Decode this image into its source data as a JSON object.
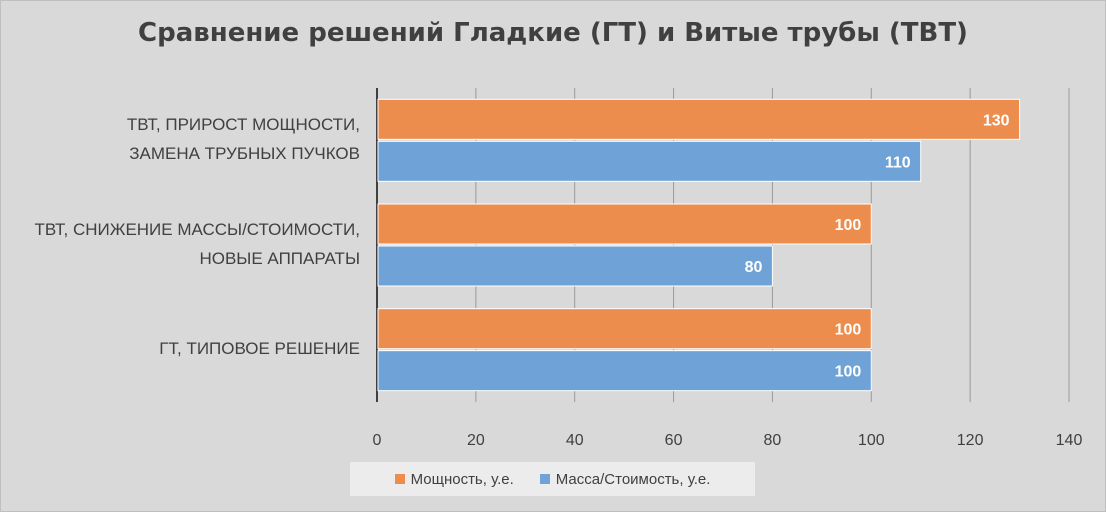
{
  "chart_data": {
    "type": "bar",
    "orientation": "horizontal",
    "title": "Сравнение решений Гладкие (ГТ) и Витые трубы (ТВТ)",
    "categories": [
      [
        "ТВТ, ПРИРОСТ МОЩНОСТИ,",
        "ЗАМЕНА ТРУБНЫХ ПУЧКОВ"
      ],
      [
        "ТВТ, СНИЖЕНИЕ МАССЫ/СТОИМОСТИ,",
        "НОВЫЕ АППАРАТЫ"
      ],
      [
        "ГТ, ТИПОВОЕ РЕШЕНИЕ"
      ]
    ],
    "series": [
      {
        "name": "Мощность, у.е.",
        "color": "#ed8d4d",
        "values": [
          130,
          100,
          100
        ]
      },
      {
        "name": "Масса/Стоимость, у.е.",
        "color": "#6fa3d8",
        "values": [
          110,
          80,
          100
        ]
      }
    ],
    "xlim": [
      0,
      140
    ],
    "xticks": [
      "0",
      "20",
      "40",
      "60",
      "80",
      "100",
      "120",
      "140"
    ],
    "grid": true,
    "legend_position": "bottom",
    "data_labels": true
  }
}
